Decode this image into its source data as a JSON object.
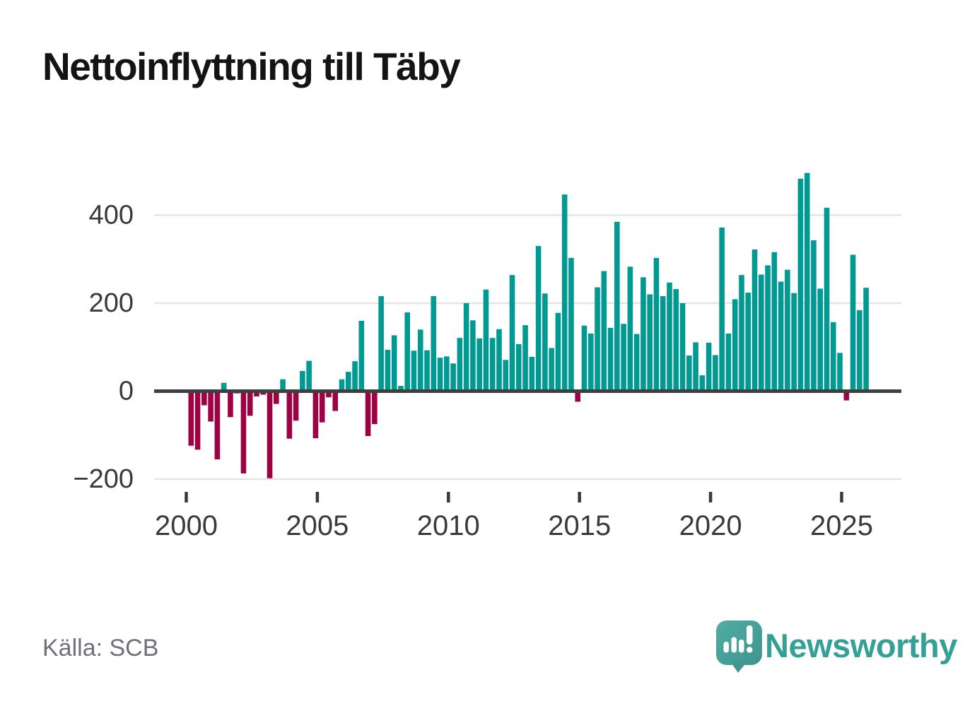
{
  "title": "Nettoinflyttning till Täby",
  "source": "Källa: SCB",
  "brand": "Newsworthy",
  "colors": {
    "bar_positive": "#009a93",
    "bar_negative": "#9b0344",
    "zero_line": "#3f3f3f",
    "gridline": "#e4e4e4",
    "axis_text": "#3a3a3a",
    "title_text": "#141414",
    "source_text": "#70707a",
    "brand_teal": "#35a096",
    "logo_fill_light": "#50aca4",
    "logo_fill_dark": "#3e968e"
  },
  "chart_data": {
    "type": "bar",
    "title": "Nettoinflyttning till Täby",
    "frequency": "quarterly",
    "start_period": "2000Q1",
    "end_period": "2025Q4",
    "x_tick_labels": [
      "2000",
      "2005",
      "2010",
      "2015",
      "2020",
      "2025"
    ],
    "y_ticks": [
      400,
      200,
      0,
      -200
    ],
    "y_tick_labels": [
      "400",
      "200",
      "0",
      "−200"
    ],
    "ylim": [
      -230,
      510
    ],
    "grid": true,
    "legend": false,
    "values": [
      -124,
      -133,
      -32,
      -69,
      -155,
      19,
      -59,
      -5,
      -187,
      -56,
      -12,
      -8,
      -198,
      -29,
      27,
      -108,
      -67,
      46,
      69,
      -107,
      -71,
      -14,
      -45,
      27,
      44,
      68,
      160,
      -102,
      -75,
      216,
      94,
      127,
      12,
      179,
      92,
      140,
      93,
      216,
      76,
      79,
      63,
      121,
      200,
      161,
      120,
      231,
      121,
      141,
      71,
      264,
      107,
      150,
      78,
      330,
      222,
      98,
      178,
      447,
      303,
      -24,
      149,
      131,
      236,
      273,
      144,
      385,
      153,
      283,
      130,
      259,
      220,
      303,
      216,
      247,
      232,
      200,
      81,
      111,
      36,
      110,
      82,
      372,
      131,
      209,
      264,
      224,
      322,
      265,
      286,
      316,
      249,
      276,
      223,
      483,
      496,
      343,
      233,
      417,
      157,
      87,
      -21,
      310,
      184,
      235
    ]
  }
}
